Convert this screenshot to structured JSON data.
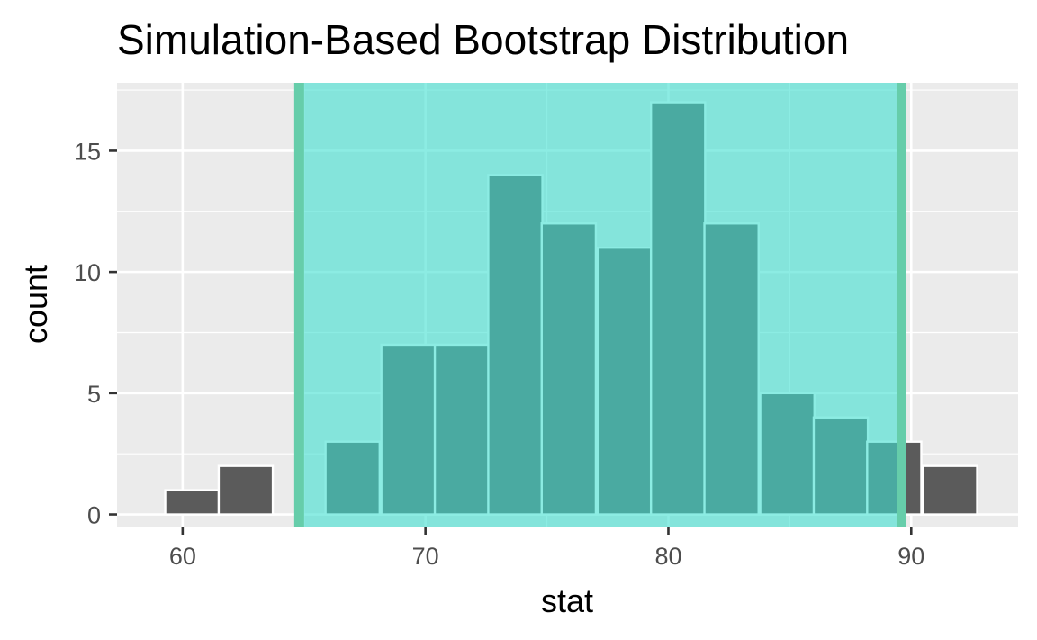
{
  "chart_data": {
    "type": "bar",
    "title": "Simulation-Based Bootstrap Distribution",
    "xlabel": "stat",
    "ylabel": "count",
    "xlim": [
      57.3,
      94.4
    ],
    "ylim": [
      -0.5,
      17.8
    ],
    "x_ticks": [
      "60",
      "70",
      "80",
      "90"
    ],
    "y_ticks": [
      "0",
      "5",
      "10",
      "15"
    ],
    "grid": true,
    "bin_width": 2.23,
    "bins": [
      {
        "x": 60.4,
        "count": 1
      },
      {
        "x": 62.6,
        "count": 2
      },
      {
        "x": 64.8,
        "count": 0
      },
      {
        "x": 67.0,
        "count": 3
      },
      {
        "x": 69.3,
        "count": 7
      },
      {
        "x": 71.5,
        "count": 7
      },
      {
        "x": 73.7,
        "count": 14
      },
      {
        "x": 75.9,
        "count": 12
      },
      {
        "x": 78.2,
        "count": 11
      },
      {
        "x": 80.4,
        "count": 17
      },
      {
        "x": 82.6,
        "count": 12
      },
      {
        "x": 84.9,
        "count": 5
      },
      {
        "x": 87.1,
        "count": 4
      },
      {
        "x": 89.3,
        "count": 3
      },
      {
        "x": 91.6,
        "count": 2
      }
    ],
    "confidence_interval": {
      "lower": 64.8,
      "upper": 89.6
    },
    "colors": {
      "bar_fill": "#5b5b5b",
      "bar_outline": "#ffffff",
      "ci_fill": "#40e0d0",
      "ci_line": "#66cdaa",
      "panel_bg": "#ebebeb",
      "grid": "#ffffff"
    }
  }
}
